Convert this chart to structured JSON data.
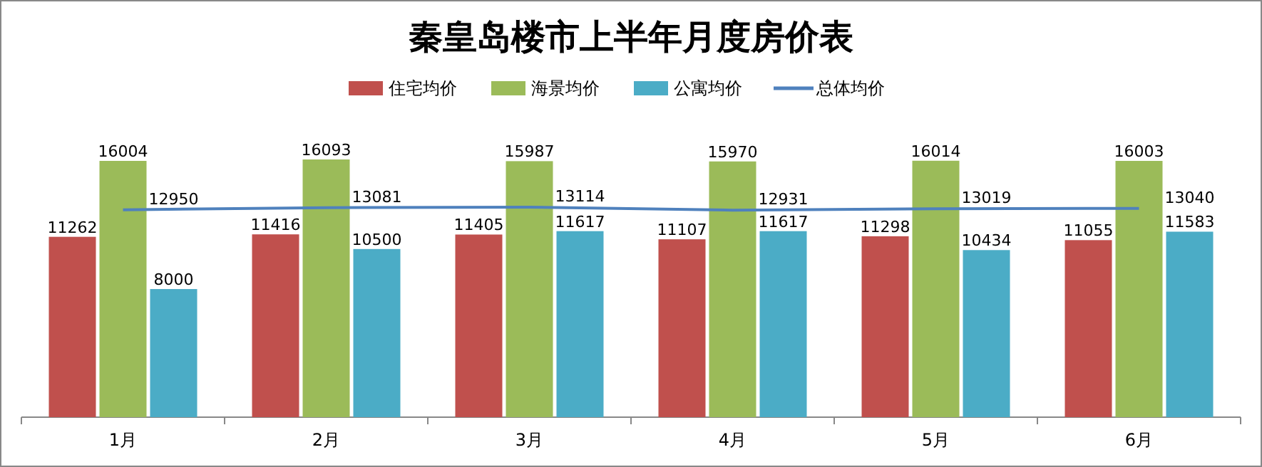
{
  "chart_data": {
    "type": "bar",
    "title": "秦皇岛楼市上半年月度房价表",
    "categories": [
      "1月",
      "2月",
      "3月",
      "4月",
      "5月",
      "6月"
    ],
    "series": [
      {
        "name": "住宅均价",
        "color": "#c0504d",
        "values": [
          11262,
          11416,
          11405,
          11107,
          11298,
          11055
        ]
      },
      {
        "name": "海景均价",
        "color": "#9bbb59",
        "values": [
          16004,
          16093,
          15987,
          15970,
          16014,
          16003
        ]
      },
      {
        "name": "公寓均价",
        "color": "#4bacc6",
        "values": [
          8000,
          10500,
          11617,
          11617,
          10434,
          11583
        ]
      },
      {
        "name": "总体均价",
        "type": "line",
        "color": "#4f81bd",
        "values": [
          12950,
          13081,
          13114,
          12931,
          13019,
          13040
        ]
      }
    ],
    "data_labels": true,
    "legend": "top"
  }
}
